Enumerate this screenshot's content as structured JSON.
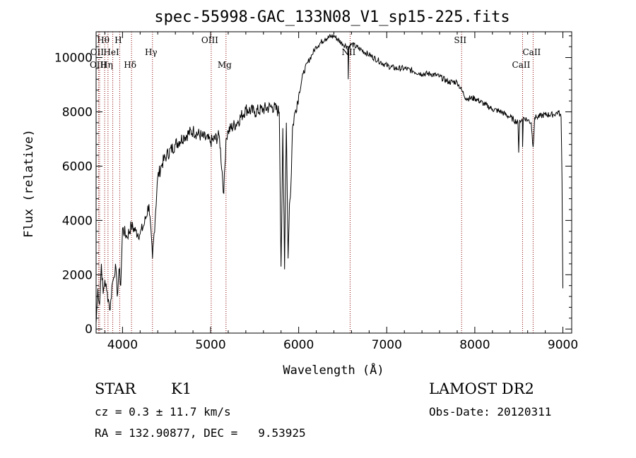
{
  "chart_data": {
    "type": "line",
    "title": "spec-55998-GAC_133N08_V1_sp15-225.fits",
    "xlabel": "Wavelength (Å)",
    "ylabel": "Flux (relative)",
    "xlim": [
      3700,
      9100
    ],
    "ylim": [
      -150,
      10950
    ],
    "xticks": [
      4000,
      5000,
      6000,
      7000,
      8000,
      9000
    ],
    "yticks": [
      0,
      2000,
      4000,
      6000,
      8000,
      10000
    ],
    "grid": false,
    "series": [
      {
        "x": [
          3700,
          3720,
          3740,
          3760,
          3780,
          3800,
          3820,
          3840,
          3860,
          3880,
          3900,
          3920,
          3940,
          3960,
          3980,
          4000,
          4050,
          4100,
          4150,
          4200,
          4250,
          4300,
          4340,
          4400,
          4450,
          4500,
          4600,
          4700,
          4800,
          4900,
          5000,
          5100,
          5150,
          5175,
          5200,
          5300,
          5400,
          5500,
          5600,
          5700,
          5780,
          5800,
          5820,
          5840,
          5860,
          5880,
          5895,
          5910,
          5930,
          5960,
          6000,
          6050,
          6100,
          6150,
          6200,
          6300,
          6400,
          6500,
          6560,
          6563,
          6570,
          6600,
          6700,
          6800,
          6900,
          7000,
          7100,
          7200,
          7300,
          7400,
          7500,
          7600,
          7700,
          7800,
          7850,
          7900,
          8000,
          8100,
          8200,
          8300,
          8400,
          8490,
          8498,
          8510,
          8540,
          8542,
          8550,
          8600,
          8640,
          8662,
          8680,
          8700,
          8800,
          8900,
          8950,
          8980,
          8990,
          9000
        ],
        "y": [
          200,
          1500,
          900,
          2400,
          1300,
          1800,
          1400,
          1100,
          700,
          1600,
          1900,
          2400,
          1200,
          2200,
          1600,
          3700,
          3400,
          3800,
          3600,
          3500,
          3900,
          4600,
          2600,
          5600,
          6100,
          6400,
          6800,
          7100,
          7300,
          7100,
          6900,
          7100,
          5000,
          7000,
          7300,
          7600,
          8100,
          8000,
          8100,
          8200,
          8000,
          2300,
          7400,
          2200,
          7600,
          2600,
          4600,
          5100,
          7400,
          8000,
          8600,
          9400,
          9800,
          10100,
          10400,
          10700,
          10800,
          10500,
          10400,
          9200,
          10400,
          10500,
          10300,
          10100,
          9900,
          9700,
          9600,
          9600,
          9500,
          9400,
          9400,
          9300,
          9100,
          9100,
          8800,
          8500,
          8500,
          8300,
          8100,
          8000,
          7800,
          7600,
          6500,
          7700,
          7700,
          6700,
          7800,
          7700,
          7600,
          6700,
          7800,
          7800,
          7900,
          7900,
          8000,
          7800,
          5500,
          1500
        ]
      }
    ],
    "lines": [
      {
        "name": "Hθ",
        "x": 3797,
        "row": 1
      },
      {
        "name": "OII",
        "x": 3727,
        "row": 2
      },
      {
        "name": "OIII",
        "x": 3740,
        "row": 3
      },
      {
        "name": "H",
        "x": 3968,
        "row": 1
      },
      {
        "name": "HeI",
        "x": 3889,
        "row": 2
      },
      {
        "name": "Hη",
        "x": 3835,
        "row": 3
      },
      {
        "name": "Hγ",
        "x": 4340,
        "row": 2
      },
      {
        "name": "Hδ",
        "x": 4102,
        "row": 3
      },
      {
        "name": "OIII",
        "x": 5007,
        "row": 1
      },
      {
        "name": "Mg",
        "x": 5175,
        "row": 3
      },
      {
        "name": "NII",
        "x": 6584,
        "row": 2
      },
      {
        "name": "SII",
        "x": 7850,
        "row": 1
      },
      {
        "name": "CaII",
        "x": 8542,
        "row": 3
      },
      {
        "name": "CaII",
        "x": 8662,
        "row": 2
      }
    ]
  },
  "info": {
    "class": "STAR",
    "subclass": "K1",
    "survey": "LAMOST DR2",
    "cz": "cz = 0.3 ± 11.7 km/s",
    "obs_date": "Obs-Date: 20120311",
    "coords": "RA = 132.90877, DEC =   9.53925"
  },
  "colors": {
    "spectrum": "#000000",
    "line_markers": "#8b0000",
    "background": "#ffffff"
  }
}
